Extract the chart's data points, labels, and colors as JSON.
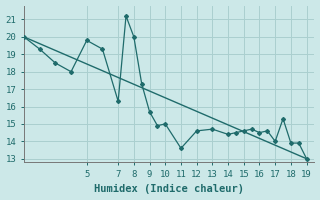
{
  "xlabel": "Humidex (Indice chaleur)",
  "bg_color": "#cce8e8",
  "grid_color": "#aacfcf",
  "line_color": "#1f6b6b",
  "data_x": [
    1,
    2,
    3,
    4,
    5,
    6,
    7,
    7.5,
    8,
    8.5,
    9,
    9.5,
    10,
    11,
    12,
    13,
    14,
    14.5,
    15,
    15.5,
    16,
    16.5,
    17,
    17.5,
    18,
    18.5,
    19
  ],
  "data_y": [
    20.0,
    19.3,
    18.5,
    18.0,
    19.8,
    19.3,
    16.3,
    21.2,
    20.0,
    17.3,
    15.7,
    14.9,
    15.0,
    13.6,
    14.6,
    14.7,
    14.4,
    14.5,
    14.6,
    14.7,
    14.5,
    14.6,
    14.0,
    15.3,
    13.9,
    13.9,
    13.0
  ],
  "trend_x": [
    1,
    19
  ],
  "trend_y": [
    20.0,
    13.0
  ],
  "xlim": [
    1,
    19.5
  ],
  "ylim": [
    12.8,
    21.8
  ],
  "xticks": [
    5,
    7,
    8,
    9,
    10,
    11,
    12,
    13,
    14,
    15,
    16,
    17,
    18,
    19
  ],
  "yticks": [
    13,
    14,
    15,
    16,
    17,
    18,
    19,
    20,
    21
  ],
  "tick_fontsize": 6.5,
  "label_fontsize": 7.5
}
